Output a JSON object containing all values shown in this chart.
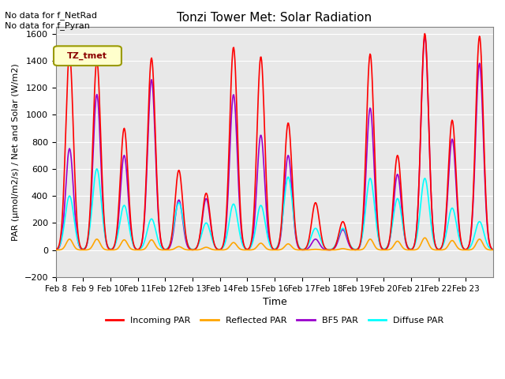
{
  "title": "Tonzi Tower Met: Solar Radiation",
  "ylabel": "PAR (μmol/m2/s) / Net and Solar (W/m2)",
  "xlabel": "Time",
  "ylim": [
    -200,
    1650
  ],
  "yticks": [
    -200,
    0,
    200,
    400,
    600,
    800,
    1000,
    1200,
    1400,
    1600
  ],
  "x_tick_labels": [
    "Feb 8",
    "Feb 9",
    "Feb 10",
    "Feb 11",
    "Feb 12",
    "Feb 13",
    "Feb 14",
    "Feb 15",
    "Feb 16",
    "Feb 17",
    "Feb 18",
    "Feb 19",
    "Feb 20",
    "Feb 21",
    "Feb 22",
    "Feb 23"
  ],
  "annotation_text": "No data for f_NetRad\nNo data for f_Pyran",
  "legend_label": "TZ_tmet",
  "colors": {
    "incoming": "#FF0000",
    "reflected": "#FFA500",
    "bf5": "#9900CC",
    "diffuse": "#00FFFF",
    "background": "#E8E8E8",
    "legend_box_bg": "#FFFFCC",
    "legend_box_edge": "#999900"
  },
  "day_peaks_incoming": [
    1450,
    1400,
    900,
    1420,
    590,
    420,
    1500,
    1430,
    940,
    350,
    210,
    1450,
    700,
    1600,
    960,
    1580
  ],
  "day_peaks_bf5": [
    750,
    1150,
    700,
    1260,
    370,
    380,
    1150,
    850,
    700,
    80,
    150,
    1050,
    560,
    1580,
    820,
    1380
  ],
  "day_peaks_diffuse": [
    400,
    600,
    330,
    230,
    350,
    200,
    340,
    330,
    540,
    160,
    160,
    530,
    380,
    530,
    310,
    210
  ],
  "day_peaks_reflected": [
    80,
    80,
    75,
    75,
    25,
    20,
    55,
    50,
    45,
    5,
    10,
    80,
    65,
    90,
    70,
    80
  ],
  "legend_items": [
    {
      "label": "Incoming PAR",
      "color": "#FF0000"
    },
    {
      "label": "Reflected PAR",
      "color": "#FFA500"
    },
    {
      "label": "BF5 PAR",
      "color": "#9900CC"
    },
    {
      "label": "Diffuse PAR",
      "color": "#00FFFF"
    }
  ]
}
